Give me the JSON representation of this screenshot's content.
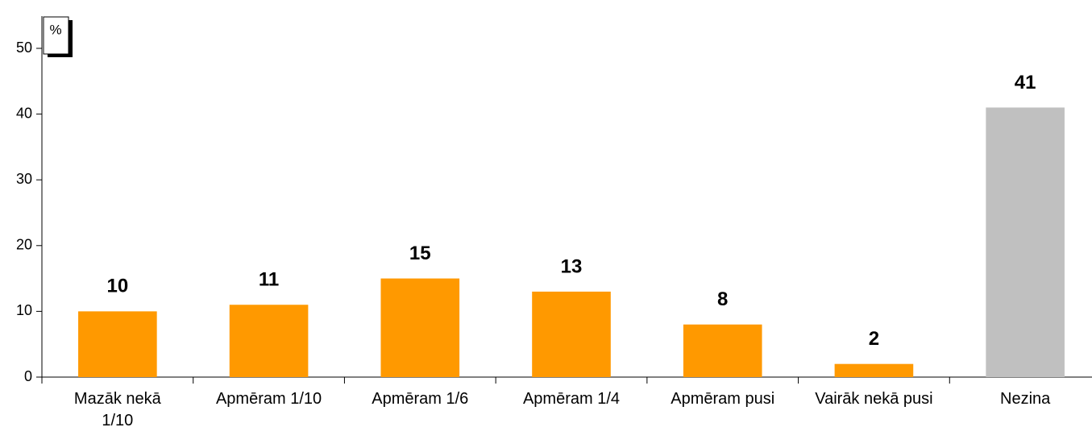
{
  "chart_data": {
    "type": "bar",
    "y_label": "%",
    "categories": [
      "Mazāk nekā 1/10",
      "Apmēram 1/10",
      "Apmēram 1/6",
      "Apmēram 1/4",
      "Apmēram pusi",
      "Vairāk nekā pusi",
      "Nezina"
    ],
    "values": [
      10,
      11,
      15,
      13,
      8,
      2,
      41
    ],
    "colors": [
      "#ff9900",
      "#ff9900",
      "#ff9900",
      "#ff9900",
      "#ff9900",
      "#ff9900",
      "#c0c0c0"
    ],
    "ylim": [
      0,
      50
    ],
    "yticks": [
      0,
      10,
      20,
      30,
      40,
      50
    ],
    "grid": false
  }
}
